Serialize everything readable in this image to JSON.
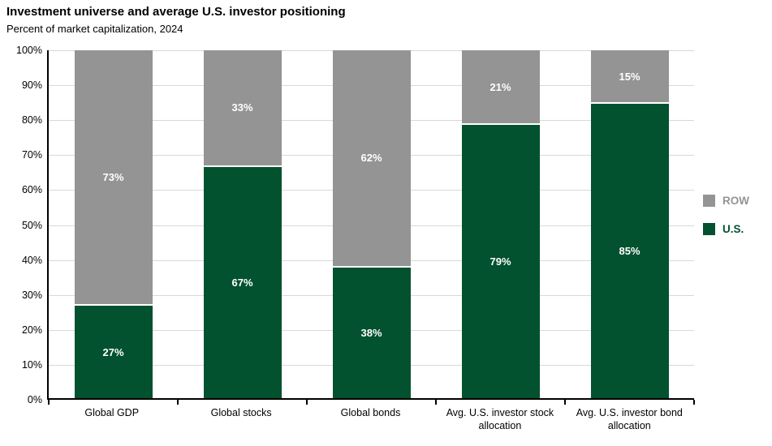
{
  "header": {
    "title": "Investment universe and average U.S. investor positioning",
    "subtitle": "Percent of market capitalization, 2024"
  },
  "colors": {
    "us": "#02512F",
    "row": "#949494",
    "grid": "#d9d9d9",
    "axis": "#000000",
    "value_label": "#ffffff"
  },
  "legend": {
    "position": "right",
    "items": [
      {
        "label": "ROW",
        "color": "#949494"
      },
      {
        "label": "U.S.",
        "color": "#02512F"
      }
    ]
  },
  "y_axis": {
    "tick_labels": [
      "100%",
      "90%",
      "80%",
      "70%",
      "60%",
      "50%",
      "40%",
      "30%",
      "20%",
      "10%",
      "0%"
    ],
    "tick_values": [
      100,
      90,
      80,
      70,
      60,
      50,
      40,
      30,
      20,
      10,
      0
    ]
  },
  "chart_data": {
    "type": "bar",
    "stacked": true,
    "title": "Investment universe and average U.S. investor positioning",
    "subtitle": "Percent of market capitalization, 2024",
    "xlabel": "",
    "ylabel": "Percent of market capitalization",
    "ylim": [
      0,
      100
    ],
    "grid": true,
    "legend_position": "right",
    "categories": [
      "Global GDP",
      "Global stocks",
      "Global bonds",
      "Avg. U.S. investor stock allocation",
      "Avg. U.S. investor bond allocation"
    ],
    "series": [
      {
        "name": "U.S.",
        "color": "#02512F",
        "values": [
          27,
          67,
          38,
          79,
          85
        ],
        "value_labels": [
          "27%",
          "67%",
          "38%",
          "79%",
          "85%"
        ]
      },
      {
        "name": "ROW",
        "color": "#949494",
        "values": [
          73,
          33,
          62,
          21,
          15
        ],
        "value_labels": [
          "73%",
          "33%",
          "62%",
          "21%",
          "15%"
        ]
      }
    ]
  }
}
